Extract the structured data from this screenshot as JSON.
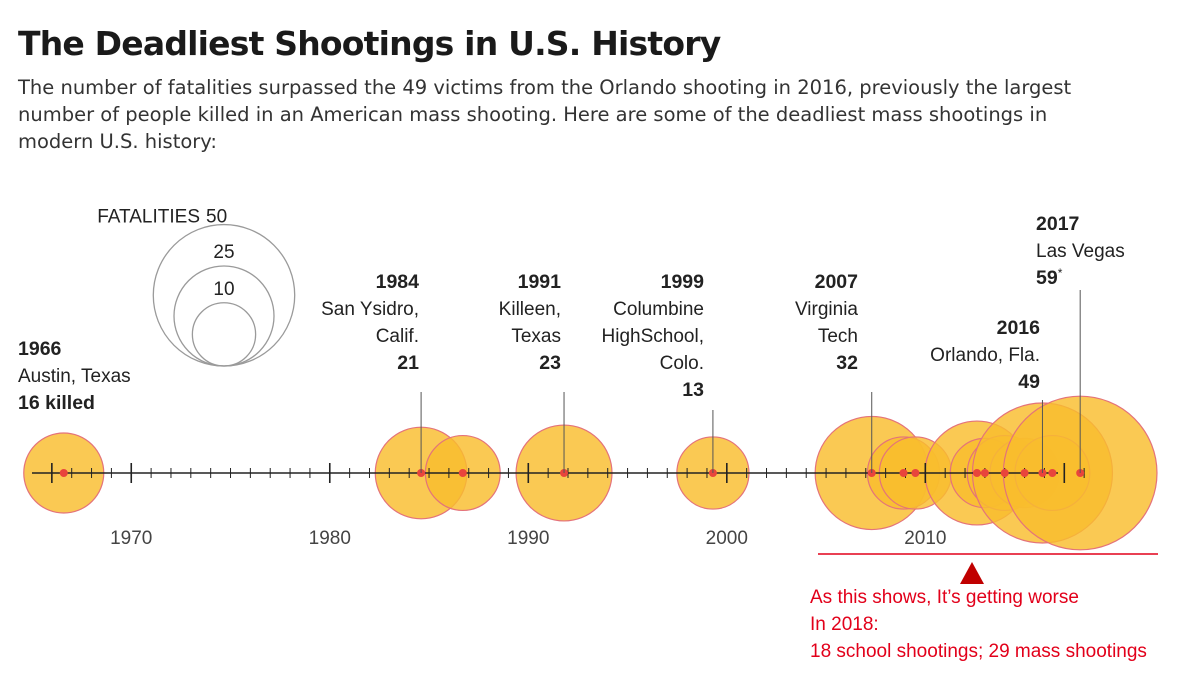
{
  "header": {
    "title": "The Deadliest Shootings in U.S. History",
    "subtitle": "The number of fatalities surpassed the 49 victims from the Orlando shooting in 2016, previously the largest number of people killed in an American mass shooting. Here are some of the deadliest mass shootings in modern U.S. history:"
  },
  "chart_data": {
    "type": "bubble-timeline",
    "x_range": [
      1965,
      2019
    ],
    "x_ticks": [
      1970,
      1980,
      1990,
      2000,
      2010
    ],
    "size_legend": {
      "label": "FATALITIES",
      "values": [
        50,
        25,
        10
      ]
    },
    "events": [
      {
        "year": 1966.6,
        "fatalities": 16,
        "year_label": "1966",
        "place": [
          "Austin, Texas"
        ],
        "count_label": "16 killed"
      },
      {
        "year": 1984.6,
        "fatalities": 21,
        "year_label": "1984",
        "place": [
          "San Ysidro,",
          "Calif."
        ],
        "count_label": "21"
      },
      {
        "year": 1986.7,
        "fatalities": 14
      },
      {
        "year": 1991.8,
        "fatalities": 23,
        "year_label": "1991",
        "place": [
          "Killeen,",
          "Texas"
        ],
        "count_label": "23"
      },
      {
        "year": 1999.3,
        "fatalities": 13,
        "year_label": "1999",
        "place": [
          "Columbine",
          "HighSchool,",
          "Colo."
        ],
        "count_label": "13"
      },
      {
        "year": 2007.3,
        "fatalities": 32,
        "year_label": "2007",
        "place": [
          "Virginia",
          "Tech"
        ],
        "count_label": "32"
      },
      {
        "year": 2008.9,
        "fatalities": 13
      },
      {
        "year": 2009.5,
        "fatalities": 13
      },
      {
        "year": 2012.6,
        "fatalities": 27
      },
      {
        "year": 2013.0,
        "fatalities": 12
      },
      {
        "year": 2014.0,
        "fatalities": 14
      },
      {
        "year": 2015.0,
        "fatalities": 12
      },
      {
        "year": 2015.9,
        "fatalities": 49,
        "year_label": "2016",
        "place": [
          "Orlando, Fla."
        ],
        "count_label": "49"
      },
      {
        "year": 2016.4,
        "fatalities": 14
      },
      {
        "year": 2017.8,
        "fatalities": 59,
        "year_label": "2017",
        "place": [
          "Las Vegas"
        ],
        "count_label": "59*"
      }
    ]
  },
  "annotation": {
    "lines": [
      "As this shows, It’s getting worse",
      "In 2018:",
      "18 school shootings; 29 mass shootings"
    ]
  },
  "colors": {
    "bubble_fill": "#f9bd2d",
    "bubble_stroke": "#e4737a",
    "dot": "#e8453c",
    "annotation": "#e2001a",
    "axis": "#222222"
  }
}
